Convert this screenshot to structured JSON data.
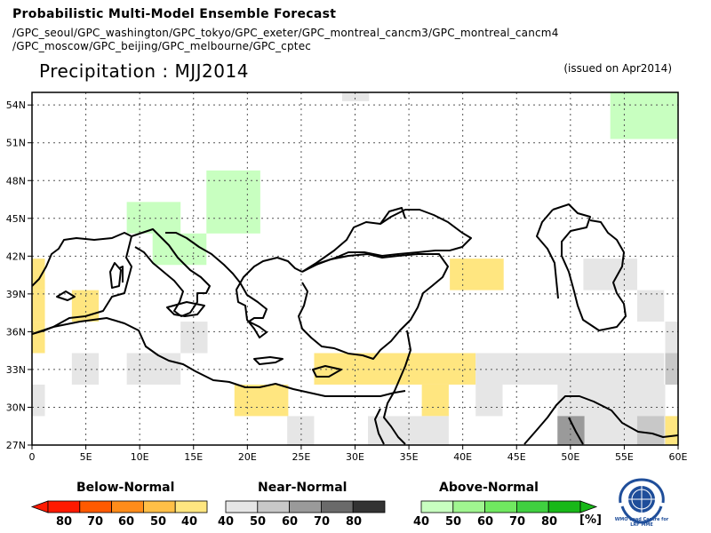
{
  "header": {
    "title": "Probabilistic Multi-Model Ensemble Forecast",
    "models_line1": "/GPC_seoul/GPC_washington/GPC_tokyo/GPC_exeter/GPC_montreal_cancm3/GPC_montreal_cancm4",
    "models_line2": "/GPC_moscow/GPC_beijing/GPC_melbourne/GPC_cptec",
    "variable": "Precipitation : MJJ2014",
    "issued": "(issued on Apr2014)"
  },
  "map": {
    "lat_labels": [
      "27N",
      "30N",
      "33N",
      "36N",
      "39N",
      "42N",
      "45N",
      "48N",
      "51N",
      "54N"
    ],
    "lon_labels": [
      "0",
      "5E",
      "10E",
      "15E",
      "20E",
      "25E",
      "30E",
      "35E",
      "40E",
      "45E",
      "50E",
      "55E",
      "60E"
    ],
    "lat_range": [
      27,
      55
    ],
    "lon_range": [
      0,
      60
    ],
    "cells": [
      {
        "lon": 0,
        "lat": 39.3,
        "cat": "below",
        "level": 40,
        "w": 1.2,
        "h": 2.5
      },
      {
        "lon": 0,
        "lat": 36.8,
        "cat": "below",
        "level": 40,
        "w": 1.2,
        "h": 2.5
      },
      {
        "lon": 0,
        "lat": 34.3,
        "cat": "below",
        "level": 40,
        "w": 1.2,
        "h": 2.5
      },
      {
        "lon": 3.7,
        "lat": 36.8,
        "cat": "below",
        "level": 40,
        "w": 2.5,
        "h": 2.5
      },
      {
        "lon": 18.8,
        "lat": 29.3,
        "cat": "below",
        "level": 40,
        "w": 5,
        "h": 2.5
      },
      {
        "lon": 26.2,
        "lat": 31.8,
        "cat": "below",
        "level": 40,
        "w": 15,
        "h": 2.5
      },
      {
        "lon": 36.2,
        "lat": 29.3,
        "cat": "below",
        "level": 40,
        "w": 2.5,
        "h": 2.5
      },
      {
        "lon": 38.8,
        "lat": 39.3,
        "cat": "below",
        "level": 40,
        "w": 5,
        "h": 2.5
      },
      {
        "lon": 58.8,
        "lat": 26.8,
        "cat": "below",
        "level": 40,
        "w": 1.2,
        "h": 2.5
      },
      {
        "lon": 28.8,
        "lat": 54.3,
        "cat": "near",
        "level": 40,
        "w": 2.5,
        "h": 1.3
      },
      {
        "lon": 0,
        "lat": 29.3,
        "cat": "near",
        "level": 40,
        "w": 1.2,
        "h": 2.5
      },
      {
        "lon": 3.7,
        "lat": 31.8,
        "cat": "near",
        "level": 40,
        "w": 2.5,
        "h": 2.5
      },
      {
        "lon": 8.8,
        "lat": 31.8,
        "cat": "near",
        "level": 40,
        "w": 5,
        "h": 2.5
      },
      {
        "lon": 13.8,
        "lat": 34.3,
        "cat": "near",
        "level": 40,
        "w": 2.5,
        "h": 2.5
      },
      {
        "lon": 23.7,
        "lat": 26.8,
        "cat": "near",
        "level": 40,
        "w": 2.5,
        "h": 2.5
      },
      {
        "lon": 31.2,
        "lat": 26.8,
        "cat": "near",
        "level": 40,
        "w": 7.5,
        "h": 2.5
      },
      {
        "lon": 41.2,
        "lat": 31.8,
        "cat": "near",
        "level": 40,
        "w": 17.5,
        "h": 2.5
      },
      {
        "lon": 41.2,
        "lat": 29.3,
        "cat": "near",
        "level": 40,
        "w": 2.5,
        "h": 2.5
      },
      {
        "lon": 48.8,
        "lat": 26.8,
        "cat": "near",
        "level": 40,
        "w": 10,
        "h": 5
      },
      {
        "lon": 51.2,
        "lat": 39.3,
        "cat": "near",
        "level": 40,
        "w": 5,
        "h": 2.5
      },
      {
        "lon": 56.2,
        "lat": 36.8,
        "cat": "near",
        "level": 40,
        "w": 2.5,
        "h": 2.5
      },
      {
        "lon": 58.8,
        "lat": 31.8,
        "cat": "near",
        "level": 40,
        "w": 1.2,
        "h": 5
      },
      {
        "lon": 58.8,
        "lat": 31.8,
        "cat": "near",
        "level": 50,
        "w": 1.2,
        "h": 2.5
      },
      {
        "lon": 56.2,
        "lat": 26.8,
        "cat": "near",
        "level": 50,
        "w": 2.5,
        "h": 2.5
      },
      {
        "lon": 48.8,
        "lat": 26.8,
        "cat": "near",
        "level": 60,
        "w": 2.5,
        "h": 2.5
      },
      {
        "lon": 8.8,
        "lat": 43.8,
        "cat": "above",
        "level": 40,
        "w": 5,
        "h": 2.5
      },
      {
        "lon": 11.2,
        "lat": 41.3,
        "cat": "above",
        "level": 40,
        "w": 5,
        "h": 2.5
      },
      {
        "lon": 16.2,
        "lat": 43.8,
        "cat": "above",
        "level": 40,
        "w": 5,
        "h": 5
      },
      {
        "lon": 53.7,
        "lat": 51.3,
        "cat": "above",
        "level": 40,
        "w": 6.3,
        "h": 4
      }
    ]
  },
  "legend": {
    "below": {
      "title": "Below-Normal",
      "ticks": [
        "80",
        "70",
        "60",
        "50",
        "40"
      ],
      "colors": [
        "#ff1a00",
        "#ff5a00",
        "#ff8c1a",
        "#ffbf47",
        "#ffe680"
      ]
    },
    "near": {
      "title": "Near-Normal",
      "ticks": [
        "40",
        "50",
        "60",
        "70",
        "80"
      ],
      "colors": [
        "#e6e6e6",
        "#c8c8c8",
        "#9a9a9a",
        "#6a6a6a",
        "#333333"
      ]
    },
    "above": {
      "title": "Above-Normal",
      "ticks": [
        "40",
        "50",
        "60",
        "70",
        "80"
      ],
      "colors": [
        "#c8ffc0",
        "#a0f590",
        "#70e860",
        "#40d040",
        "#18b818"
      ]
    },
    "unit": "[%]"
  },
  "logo": {
    "text": "WMO Lead Centre for LRF MME"
  }
}
